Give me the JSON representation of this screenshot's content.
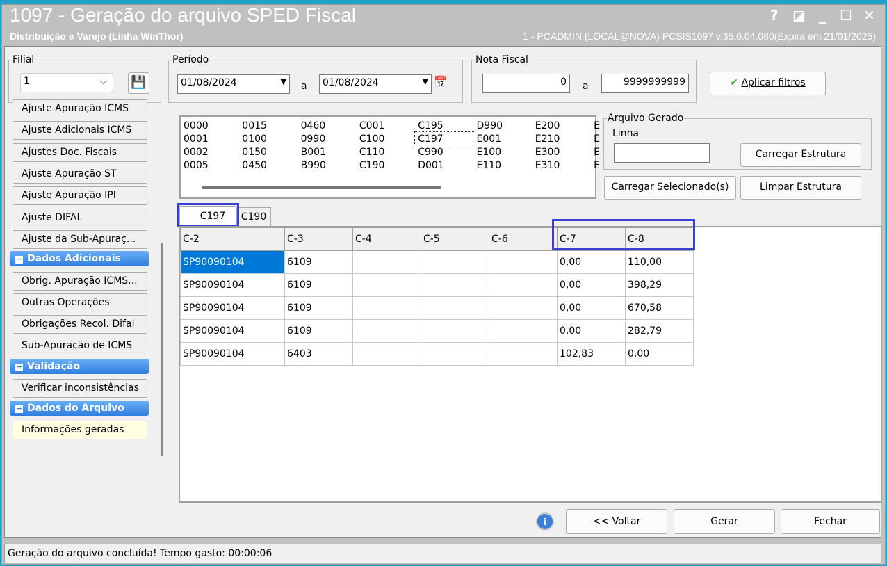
{
  "window": {
    "title": "1097 - Geração do arquivo SPED Fiscal",
    "subtitle": "Distribuição e Varejo (Linha WinThor)",
    "info": "1 - PCADMIN (LOCAL@NOVA)   PCSIS1097  v.35.0.04.080(Expira em 21/01/2025)",
    "controls": [
      "?",
      "◪",
      "_",
      "☐",
      "✕"
    ]
  },
  "filial": {
    "label": "Filial",
    "value": "1"
  },
  "periodo": {
    "label": "Período",
    "from": "01/08/2024",
    "sep": "a",
    "to": "01/08/2024"
  },
  "nota": {
    "label": "Nota Fiscal",
    "from": "0",
    "sep": "a",
    "to": "9999999999"
  },
  "apply_label": "Aplicar filtros",
  "sidebar": {
    "items": [
      {
        "label": "Ajuste Apuração ICMS"
      },
      {
        "label": "Ajuste Adicionais ICMS"
      },
      {
        "label": "Ajustes Doc. Fiscais"
      },
      {
        "label": "Ajuste Apuração ST"
      },
      {
        "label": "Ajuste Apuração IPI"
      },
      {
        "label": "Ajuste DIFAL"
      },
      {
        "label": "Ajuste da Sub-Apuraç..."
      }
    ],
    "group1": "Dados Adicionais",
    "items2": [
      {
        "label": "Obrig. Apuração ICMS..."
      },
      {
        "label": "Outras Operações"
      },
      {
        "label": "Obrigações Recol. Difal"
      },
      {
        "label": "Sub-Apuração de ICMS"
      }
    ],
    "group2": "Validação",
    "items3": [
      {
        "label": "Verificar inconsistências"
      }
    ],
    "group3": "Dados do Arquivo",
    "items4": [
      {
        "label": "Informações geradas"
      }
    ]
  },
  "codes": [
    [
      "0000",
      "0001",
      "0002",
      "0005"
    ],
    [
      "0015",
      "0100",
      "0150",
      "0450"
    ],
    [
      "0460",
      "0990",
      "B001",
      "B990"
    ],
    [
      "C001",
      "C100",
      "C110",
      "C190"
    ],
    [
      "C195",
      "C197",
      "C990",
      "D001"
    ],
    [
      "D990",
      "E001",
      "E100",
      "E110"
    ],
    [
      "E200",
      "E210",
      "E300",
      "E310"
    ],
    [
      "E",
      "E",
      "E",
      "E"
    ]
  ],
  "arquivo": {
    "label": "Arquivo Gerado",
    "linha_label": "Linha",
    "linha_value": "",
    "carregar_estrutura": "Carregar Estrutura",
    "carregar_sel": "Carregar Selecionado(s)",
    "limpar": "Limpar Estrutura"
  },
  "tabs": [
    "C197",
    "C190"
  ],
  "grid": {
    "columns": [
      "C-2",
      "C-3",
      "C-4",
      "C-5",
      "C-6",
      "C-7",
      "C-8"
    ],
    "rows": [
      [
        "SP90090104",
        "6109",
        "",
        "",
        "",
        "0,00",
        "110,00"
      ],
      [
        "SP90090104",
        "6109",
        "",
        "",
        "",
        "0,00",
        "398,29"
      ],
      [
        "SP90090104",
        "6109",
        "",
        "",
        "",
        "0,00",
        "670,58"
      ],
      [
        "SP90090104",
        "6109",
        "",
        "",
        "",
        "0,00",
        "282,79"
      ],
      [
        "SP90090104",
        "6403",
        "",
        "",
        "",
        "102,83",
        "0,00"
      ]
    ]
  },
  "buttons": {
    "voltar": "<< Voltar",
    "gerar": "Gerar",
    "fechar": "Fechar"
  },
  "status": "Geração do arquivo concluída! Tempo gasto: 00:00:06",
  "colors": {
    "highlight": "#3b3fcf",
    "group": "#2f7de0",
    "selected_cell": "#0078d7"
  }
}
